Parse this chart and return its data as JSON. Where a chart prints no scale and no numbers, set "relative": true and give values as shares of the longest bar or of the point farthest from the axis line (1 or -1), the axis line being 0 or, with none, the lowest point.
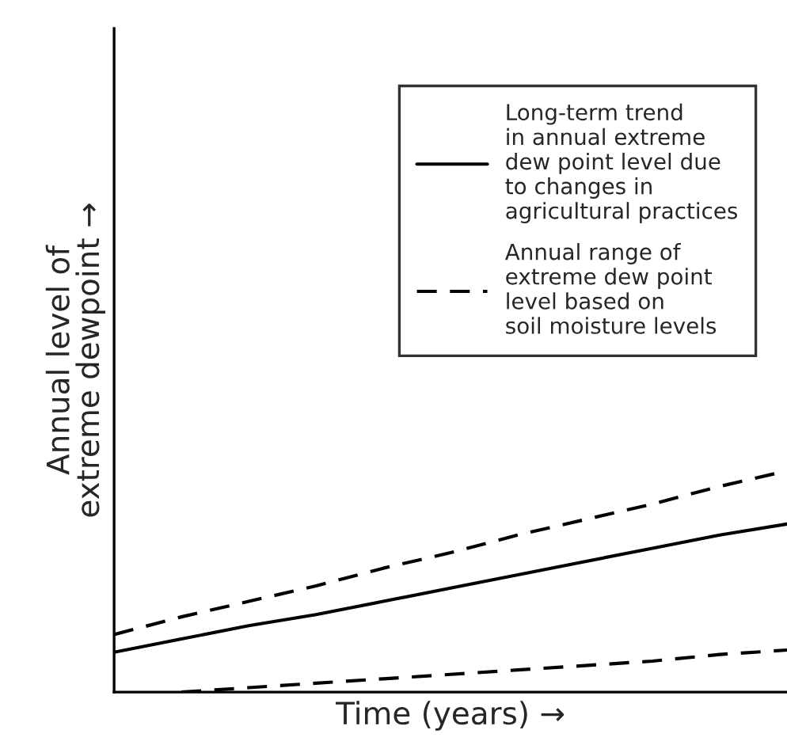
{
  "chart_data": {
    "type": "line",
    "relative": true,
    "xlabel": "Time (years) →",
    "ylabel": "Annual level of\nextreme dewpoint →",
    "categories": [
      null,
      null,
      null,
      null,
      null,
      null,
      null,
      null,
      null,
      null,
      null
    ],
    "series": [
      {
        "name": "Long-term trend\nin annual extreme\ndew point level due\nto changes in\nagricultural practices",
        "color": "#000000",
        "line_style": "solid",
        "values": [
          0.18,
          0.24,
          0.3,
          0.35,
          0.41,
          0.47,
          0.53,
          0.59,
          0.65,
          0.71,
          0.76
        ]
      },
      {
        "name": "Annual range of\nextreme dew point\nlevel based on\nsoil moisture levels",
        "color": "#000000",
        "line_style": "dashed",
        "values": [
          0.26,
          0.34,
          0.41,
          0.48,
          0.56,
          0.63,
          0.71,
          0.78,
          0.85,
          0.93,
          1.0
        ]
      },
      {
        "color": "#000000",
        "line_style": "dashed",
        "values": [
          null,
          0,
          0.02,
          0.04,
          0.06,
          0.08,
          0.1,
          0.12,
          0.14,
          0.17,
          0.19
        ]
      }
    ],
    "legend": "top right",
    "marker": "none",
    "tick_labels": false
  }
}
